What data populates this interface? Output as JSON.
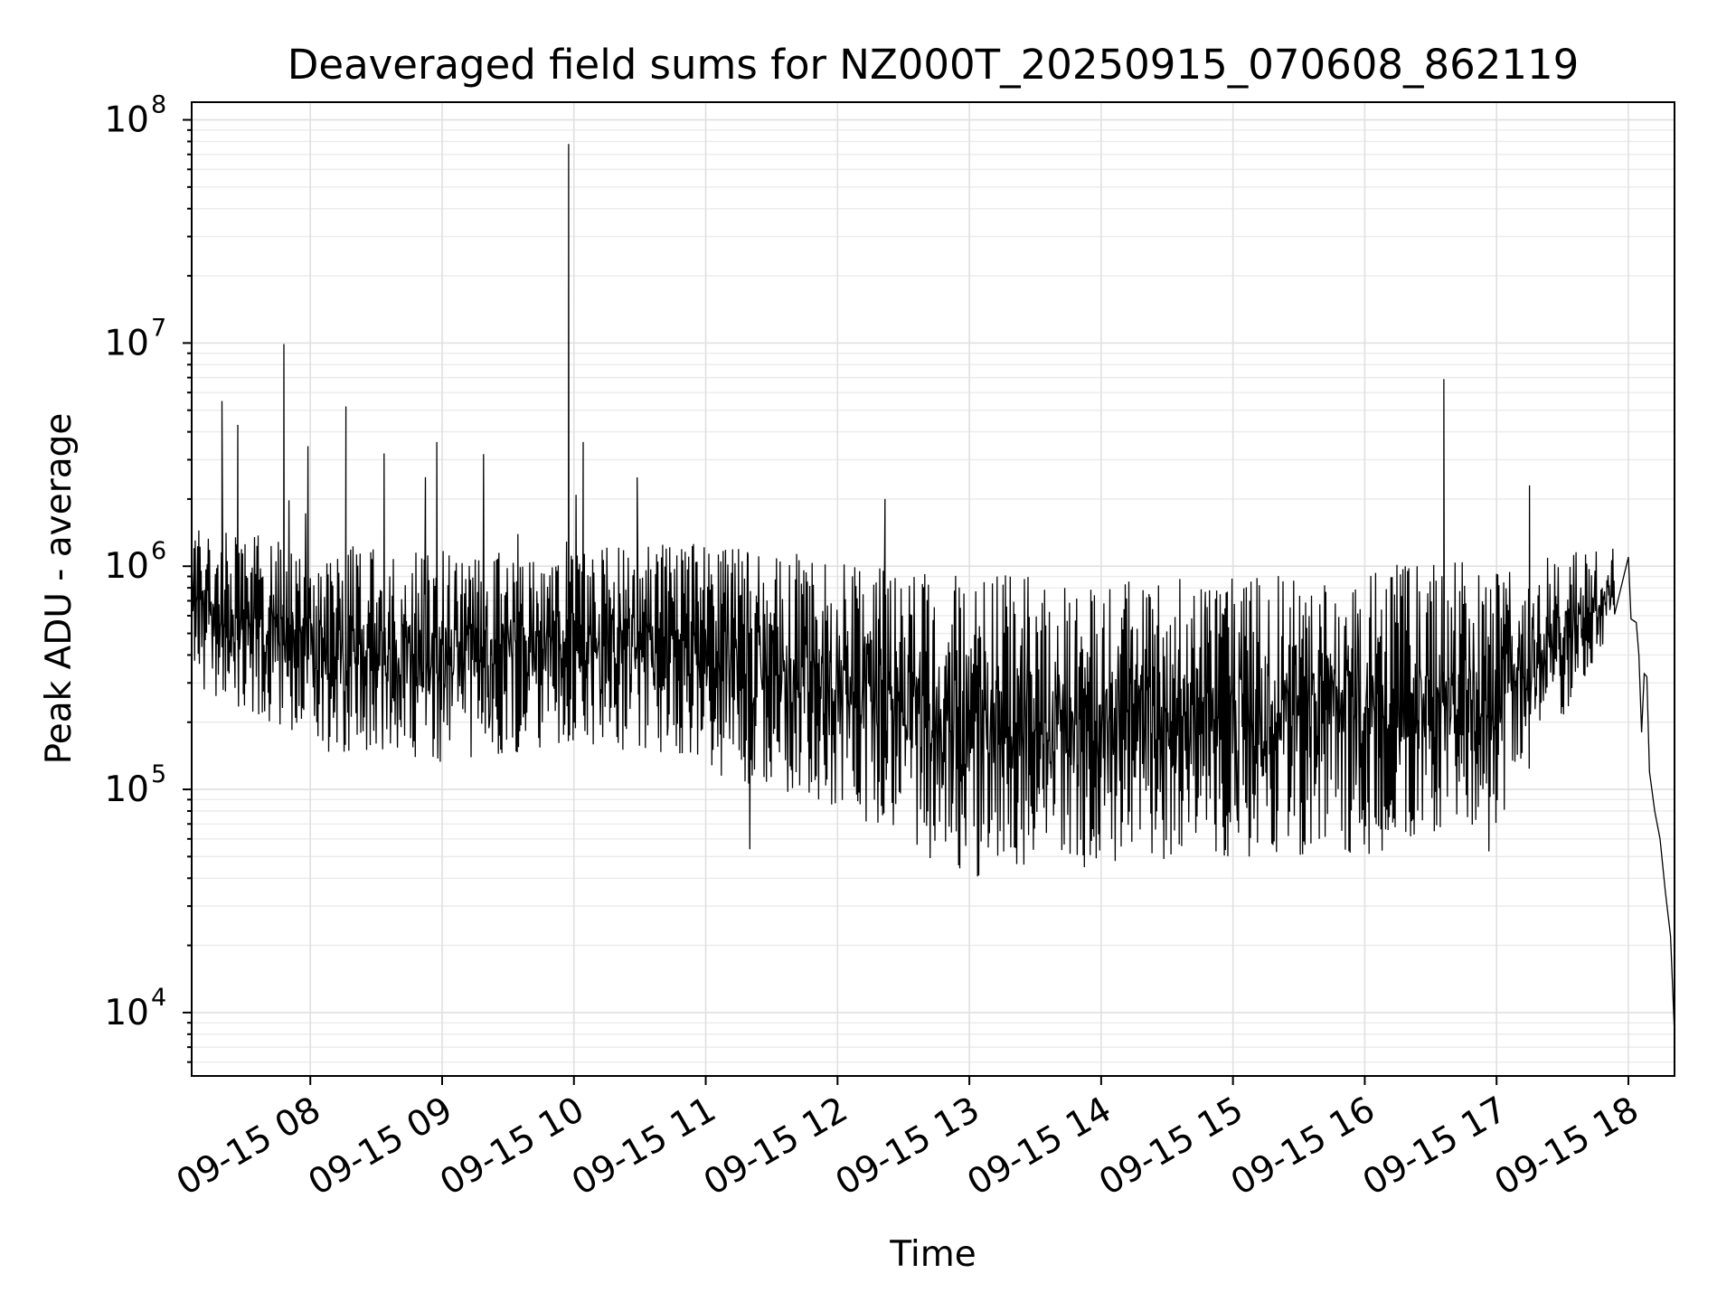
{
  "chart_data": {
    "type": "line",
    "title": "Deaveraged field sums for NZ000T_20250915_070608_862119",
    "xlabel": "Time",
    "ylabel": "Peak ADU - average",
    "yscale": "log",
    "ylim": [
      5200,
      120000000
    ],
    "xlim_hours": [
      7.1,
      18.35
    ],
    "grid": true,
    "legend": "none",
    "x_ticks": [
      {
        "hour": 8,
        "label": "09-15 08"
      },
      {
        "hour": 9,
        "label": "09-15 09"
      },
      {
        "hour": 10,
        "label": "09-15 10"
      },
      {
        "hour": 11,
        "label": "09-15 11"
      },
      {
        "hour": 12,
        "label": "09-15 12"
      },
      {
        "hour": 13,
        "label": "09-15 13"
      },
      {
        "hour": 14,
        "label": "09-15 14"
      },
      {
        "hour": 15,
        "label": "09-15 15"
      },
      {
        "hour": 16,
        "label": "09-15 16"
      },
      {
        "hour": 17,
        "label": "09-15 17"
      },
      {
        "hour": 18,
        "label": "09-15 18"
      }
    ],
    "y_ticks": [
      {
        "value": 10000,
        "base": "10",
        "exp": "4"
      },
      {
        "value": 100000,
        "base": "10",
        "exp": "5"
      },
      {
        "value": 1000000,
        "base": "10",
        "exp": "6"
      },
      {
        "value": 10000000,
        "base": "10",
        "exp": "7"
      },
      {
        "value": 100000000,
        "base": "10",
        "exp": "8"
      }
    ],
    "series": [
      {
        "name": "Peak ADU - average",
        "color": "#000000",
        "envelope": [
          {
            "hour": 7.1,
            "low": 300000,
            "high": 1500000
          },
          {
            "hour": 8.0,
            "low": 150000,
            "high": 1300000
          },
          {
            "hour": 9.0,
            "low": 130000,
            "high": 1200000
          },
          {
            "hour": 10.0,
            "low": 160000,
            "high": 1300000
          },
          {
            "hour": 11.0,
            "low": 120000,
            "high": 1300000
          },
          {
            "hour": 12.0,
            "low": 80000,
            "high": 1100000
          },
          {
            "hour": 13.0,
            "low": 40000,
            "high": 900000
          },
          {
            "hour": 14.0,
            "low": 45000,
            "high": 900000
          },
          {
            "hour": 15.0,
            "low": 50000,
            "high": 900000
          },
          {
            "hour": 16.0,
            "low": 50000,
            "high": 1000000
          },
          {
            "hour": 17.0,
            "low": 70000,
            "high": 1100000
          },
          {
            "hour": 17.9,
            "low": 500000,
            "high": 1200000
          }
        ],
        "peaks": [
          {
            "hour": 7.33,
            "value": 5500000
          },
          {
            "hour": 7.45,
            "value": 4300000
          },
          {
            "hour": 7.8,
            "value": 9900000
          },
          {
            "hour": 8.27,
            "value": 5200000
          },
          {
            "hour": 8.56,
            "value": 3200000
          },
          {
            "hour": 8.96,
            "value": 3600000
          },
          {
            "hour": 9.96,
            "value": 78000000
          },
          {
            "hour": 10.07,
            "value": 3600000
          },
          {
            "hour": 10.48,
            "value": 2500000
          },
          {
            "hour": 12.36,
            "value": 2000000
          },
          {
            "hour": 16.6,
            "value": 6900000
          },
          {
            "hour": 17.25,
            "value": 2300000
          }
        ],
        "tail": [
          {
            "hour": 18.0,
            "value": 1100000
          },
          {
            "hour": 18.02,
            "value": 580000
          },
          {
            "hour": 18.06,
            "value": 560000
          },
          {
            "hour": 18.08,
            "value": 400000
          },
          {
            "hour": 18.1,
            "value": 180000
          },
          {
            "hour": 18.12,
            "value": 330000
          },
          {
            "hour": 18.14,
            "value": 320000
          },
          {
            "hour": 18.16,
            "value": 120000
          },
          {
            "hour": 18.2,
            "value": 80000
          },
          {
            "hour": 18.24,
            "value": 60000
          },
          {
            "hour": 18.28,
            "value": 35000
          },
          {
            "hour": 18.32,
            "value": 22000
          },
          {
            "hour": 18.35,
            "value": 8000
          }
        ]
      }
    ]
  }
}
